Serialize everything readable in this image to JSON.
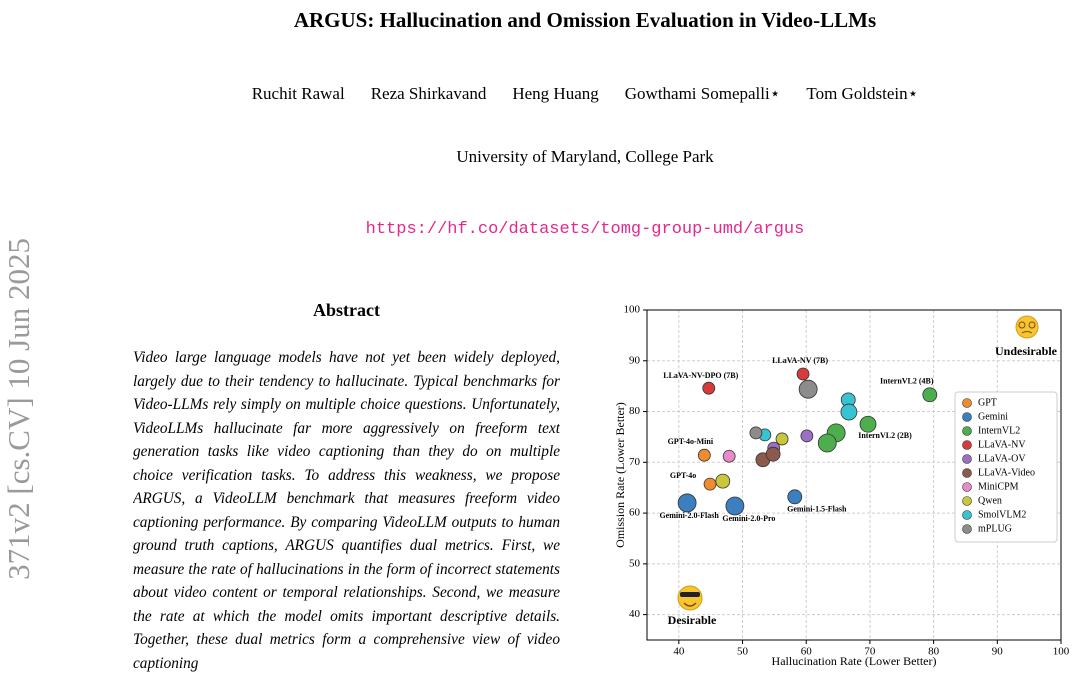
{
  "header": {
    "title": "ARGUS: Hallucination and Omission Evaluation in Video-LLMs",
    "authors": [
      "Ruchit Rawal",
      "Reza Shirkavand",
      "Heng Huang",
      "Gowthami Somepalli⋆",
      "Tom Goldstein⋆"
    ],
    "affiliation": "University of Maryland, College Park",
    "url": "https://hf.co/datasets/tomg-group-umd/argus"
  },
  "arxiv_stamp": "371v2 [cs.CV] 10 Jun 2025",
  "abstract": {
    "heading": "Abstract",
    "text": "Video large language models have not yet been widely deployed, largely due to their tendency to hallucinate. Typical benchmarks for Video-LLMs rely simply on multiple choice questions. Unfortunately, VideoLLMs hallucinate far more aggressively on freeform text generation tasks like video captioning than they do on multiple choice verification tasks. To address this weakness, we propose ARGUS, a VideoLLM benchmark that measures freeform video captioning performance. By comparing VideoLLM outputs to human ground truth captions, ARGUS quantifies dual metrics. First, we measure the rate of hallucinations in the form of incorrect statements about video content or temporal relationships. Second, we measure the rate at which the model omits important descriptive details. Together, these dual metrics form a comprehensive view of video captioning"
  },
  "chart_data": {
    "type": "scatter",
    "x_label": "Hallucination Rate (Lower Better)",
    "y_label": "Omission Rate (Lower Better)",
    "xlim": [
      35,
      100
    ],
    "ylim": [
      35,
      100
    ],
    "xticks": [
      40,
      50,
      60,
      70,
      80,
      90,
      100
    ],
    "yticks": [
      40,
      50,
      60,
      70,
      80,
      90,
      100
    ],
    "grid": true,
    "legend": "right",
    "corner_labels": {
      "top_right": "Undesirable",
      "bottom_left": "Desirable"
    },
    "series": [
      {
        "name": "GPT",
        "color": "#f08c2e",
        "x": [
          44.0,
          44.9
        ],
        "values": [
          71.4,
          65.7
        ],
        "sizes": [
          6,
          6
        ],
        "labels": [
          "GPT-4o-Mini",
          "GPT-4o"
        ]
      },
      {
        "name": "Gemini",
        "color": "#3b7fc0",
        "x": [
          41.3,
          48.8,
          58.2
        ],
        "values": [
          62.0,
          61.4,
          63.2
        ],
        "sizes": [
          9,
          9,
          7
        ],
        "labels": [
          "Gemini-2.0-Flash",
          "Gemini-2.0-Pro",
          "Gemini-1.5-Flash"
        ]
      },
      {
        "name": "InternVL2",
        "color": "#4cae4c",
        "x": [
          79.4,
          69.7,
          64.7,
          63.3
        ],
        "values": [
          83.3,
          77.5,
          75.8,
          73.8
        ],
        "sizes": [
          7,
          8,
          9,
          9
        ],
        "labels": [
          "InternVL2 (4B)",
          "InternVL2 (2B)",
          null,
          null
        ]
      },
      {
        "name": "LLaVA-NV",
        "color": "#d63a3a",
        "x": [
          44.7,
          59.5
        ],
        "values": [
          84.6,
          87.4
        ],
        "sizes": [
          6,
          6
        ],
        "labels": [
          "LLaVA-NV-DPO (7B)",
          "LLaVA-NV (7B)"
        ]
      },
      {
        "name": "LLaVA-OV",
        "color": "#9a6fc4",
        "x": [
          60.1,
          54.9
        ],
        "values": [
          75.2,
          72.8
        ],
        "sizes": [
          6,
          6
        ]
      },
      {
        "name": "LLaVA-Video",
        "color": "#8c5a4c",
        "x": [
          53.2,
          54.8
        ],
        "values": [
          70.5,
          71.6
        ],
        "sizes": [
          7,
          7
        ]
      },
      {
        "name": "MiniCPM",
        "color": "#e68bc8",
        "x": [
          47.9
        ],
        "values": [
          71.2
        ],
        "sizes": [
          6
        ]
      },
      {
        "name": "Qwen",
        "color": "#c8c83a",
        "x": [
          46.9,
          56.2
        ],
        "values": [
          66.3,
          74.6
        ],
        "sizes": [
          7,
          6
        ]
      },
      {
        "name": "SmolVLM2",
        "color": "#38c3d3",
        "x": [
          66.6,
          66.7,
          53.5
        ],
        "values": [
          82.3,
          79.9,
          75.4
        ],
        "sizes": [
          7,
          8,
          6
        ]
      },
      {
        "name": "mPLUG",
        "color": "#8c8c8c",
        "x": [
          60.3,
          52.1
        ],
        "values": [
          84.4,
          75.8
        ],
        "sizes": [
          9,
          6
        ]
      }
    ]
  }
}
